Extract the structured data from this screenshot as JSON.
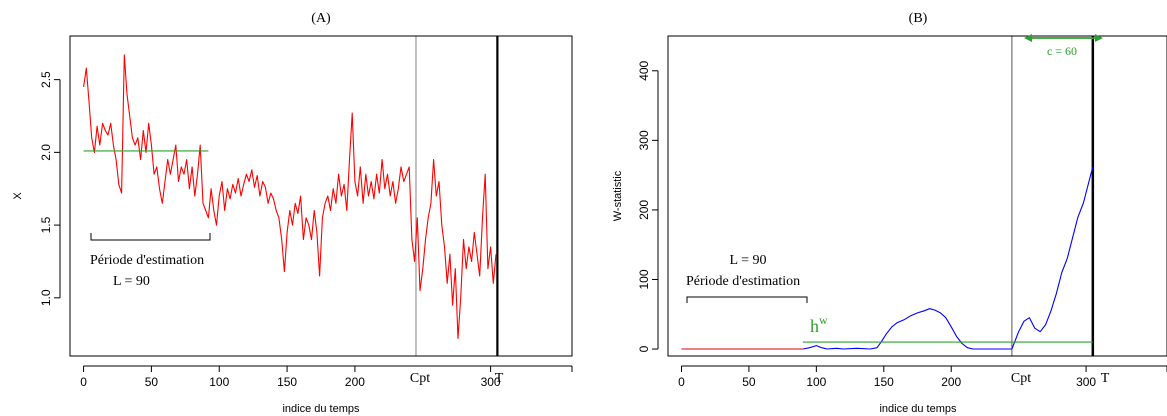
{
  "chart_data": [
    {
      "id": "A",
      "type": "line",
      "title": "(A)",
      "xlabel": "indice du temps",
      "ylabel": "X",
      "xlim": [
        -10,
        360
      ],
      "ylim": [
        0.6,
        2.8
      ],
      "xticks": [
        0,
        50,
        100,
        150,
        200,
        300
      ],
      "yticks": [
        1.0,
        1.5,
        2.0,
        2.5
      ],
      "ytick_labels": [
        "1.0",
        "1.5",
        "2.0",
        "2.5"
      ],
      "series": [
        {
          "color": "#ff0000",
          "points": [
            [
              0,
              2.45
            ],
            [
              2,
              2.58
            ],
            [
              4,
              2.35
            ],
            [
              6,
              2.1
            ],
            [
              8,
              2.0
            ],
            [
              10,
              2.18
            ],
            [
              12,
              2.05
            ],
            [
              14,
              2.2
            ],
            [
              16,
              2.15
            ],
            [
              18,
              2.12
            ],
            [
              20,
              2.2
            ],
            [
              22,
              2.05
            ],
            [
              24,
              1.95
            ],
            [
              26,
              1.78
            ],
            [
              28,
              1.72
            ],
            [
              30,
              2.67
            ],
            [
              32,
              2.4
            ],
            [
              34,
              2.25
            ],
            [
              36,
              2.1
            ],
            [
              38,
              2.05
            ],
            [
              40,
              2.1
            ],
            [
              42,
              1.95
            ],
            [
              44,
              2.15
            ],
            [
              46,
              2.0
            ],
            [
              48,
              2.2
            ],
            [
              50,
              2.05
            ],
            [
              52,
              1.85
            ],
            [
              54,
              1.9
            ],
            [
              56,
              1.75
            ],
            [
              58,
              1.65
            ],
            [
              60,
              1.8
            ],
            [
              62,
              1.95
            ],
            [
              64,
              1.85
            ],
            [
              66,
              1.95
            ],
            [
              68,
              2.05
            ],
            [
              70,
              1.8
            ],
            [
              72,
              1.9
            ],
            [
              74,
              1.85
            ],
            [
              76,
              1.95
            ],
            [
              78,
              1.75
            ],
            [
              80,
              1.9
            ],
            [
              82,
              1.7
            ],
            [
              84,
              1.85
            ],
            [
              86,
              2.05
            ],
            [
              88,
              1.65
            ],
            [
              90,
              1.6
            ],
            [
              92,
              1.55
            ],
            [
              94,
              1.75
            ],
            [
              96,
              1.6
            ],
            [
              98,
              1.5
            ],
            [
              100,
              1.7
            ],
            [
              102,
              1.8
            ],
            [
              104,
              1.6
            ],
            [
              106,
              1.75
            ],
            [
              108,
              1.68
            ],
            [
              110,
              1.78
            ],
            [
              112,
              1.72
            ],
            [
              114,
              1.82
            ],
            [
              116,
              1.7
            ],
            [
              118,
              1.78
            ],
            [
              120,
              1.85
            ],
            [
              122,
              1.8
            ],
            [
              124,
              1.88
            ],
            [
              126,
              1.76
            ],
            [
              128,
              1.84
            ],
            [
              130,
              1.7
            ],
            [
              132,
              1.8
            ],
            [
              134,
              1.76
            ],
            [
              136,
              1.65
            ],
            [
              138,
              1.72
            ],
            [
              140,
              1.68
            ],
            [
              142,
              1.6
            ],
            [
              144,
              1.55
            ],
            [
              146,
              1.4
            ],
            [
              148,
              1.18
            ],
            [
              150,
              1.45
            ],
            [
              152,
              1.6
            ],
            [
              154,
              1.5
            ],
            [
              156,
              1.65
            ],
            [
              158,
              1.58
            ],
            [
              160,
              1.7
            ],
            [
              162,
              1.4
            ],
            [
              164,
              1.55
            ],
            [
              166,
              1.5
            ],
            [
              168,
              1.4
            ],
            [
              170,
              1.6
            ],
            [
              172,
              1.45
            ],
            [
              174,
              1.15
            ],
            [
              176,
              1.55
            ],
            [
              178,
              1.65
            ],
            [
              180,
              1.7
            ],
            [
              182,
              1.6
            ],
            [
              184,
              1.75
            ],
            [
              186,
              1.65
            ],
            [
              188,
              1.85
            ],
            [
              190,
              1.7
            ],
            [
              192,
              1.78
            ],
            [
              194,
              1.6
            ],
            [
              196,
              1.95
            ],
            [
              198,
              2.27
            ],
            [
              200,
              1.8
            ],
            [
              202,
              1.7
            ],
            [
              204,
              1.9
            ],
            [
              206,
              1.65
            ],
            [
              208,
              1.85
            ],
            [
              210,
              1.7
            ],
            [
              212,
              1.8
            ],
            [
              214,
              1.68
            ],
            [
              216,
              1.85
            ],
            [
              218,
              1.72
            ],
            [
              220,
              1.95
            ],
            [
              222,
              1.75
            ],
            [
              224,
              1.85
            ],
            [
              226,
              1.7
            ],
            [
              228,
              1.8
            ],
            [
              230,
              1.65
            ],
            [
              232,
              1.75
            ],
            [
              234,
              1.9
            ],
            [
              236,
              1.8
            ],
            [
              238,
              1.85
            ],
            [
              240,
              1.9
            ],
            [
              242,
              1.4
            ],
            [
              244,
              1.25
            ],
            [
              246,
              1.55
            ],
            [
              248,
              1.05
            ],
            [
              250,
              1.2
            ],
            [
              252,
              1.4
            ],
            [
              254,
              1.55
            ],
            [
              256,
              1.65
            ],
            [
              258,
              1.95
            ],
            [
              260,
              1.7
            ],
            [
              262,
              1.8
            ],
            [
              264,
              1.5
            ],
            [
              266,
              1.35
            ],
            [
              268,
              1.1
            ],
            [
              270,
              1.3
            ],
            [
              272,
              0.95
            ],
            [
              274,
              1.2
            ],
            [
              276,
              0.72
            ],
            [
              278,
              1.0
            ],
            [
              280,
              1.4
            ],
            [
              282,
              1.2
            ],
            [
              284,
              1.35
            ],
            [
              286,
              1.25
            ],
            [
              288,
              1.45
            ],
            [
              290,
              1.3
            ],
            [
              292,
              1.15
            ],
            [
              294,
              1.55
            ],
            [
              296,
              1.85
            ],
            [
              298,
              1.2
            ],
            [
              300,
              1.35
            ],
            [
              302,
              1.1
            ],
            [
              304,
              1.3
            ]
          ]
        },
        {
          "color": "#2ca02c",
          "points": [
            [
              0,
              2.01
            ],
            [
              92,
              2.01
            ]
          ]
        }
      ],
      "vlines": [
        {
          "x": 245,
          "color": "#999999",
          "width": 1.2
        },
        {
          "x": 305,
          "color": "#000000",
          "width": 2.2
        }
      ],
      "x_marker_labels": [
        "Cpt",
        "T"
      ],
      "annotations": {
        "estimation_label": "Période d'estimation",
        "L_label": "L = 90"
      }
    },
    {
      "id": "B",
      "type": "line",
      "title": "(B)",
      "xlabel": "indice du temps",
      "ylabel": "W-statistic",
      "xlim": [
        -10,
        360
      ],
      "ylim": [
        -10,
        450
      ],
      "xticks": [
        0,
        50,
        100,
        150,
        200,
        300
      ],
      "yticks": [
        0,
        100,
        200,
        300,
        400
      ],
      "series": [
        {
          "color": "#e00000",
          "points": [
            [
              0,
              0
            ],
            [
              90,
              0
            ]
          ]
        },
        {
          "color": "#0000ff",
          "points": [
            [
              90,
              0
            ],
            [
              95,
              2
            ],
            [
              100,
              5
            ],
            [
              104,
              2
            ],
            [
              108,
              0
            ],
            [
              115,
              1
            ],
            [
              120,
              0
            ],
            [
              130,
              1
            ],
            [
              140,
              0
            ],
            [
              145,
              2
            ],
            [
              148,
              10
            ],
            [
              152,
              22
            ],
            [
              156,
              32
            ],
            [
              160,
              38
            ],
            [
              165,
              42
            ],
            [
              170,
              48
            ],
            [
              175,
              52
            ],
            [
              180,
              55
            ],
            [
              184,
              58
            ],
            [
              188,
              56
            ],
            [
              192,
              52
            ],
            [
              196,
              45
            ],
            [
              200,
              32
            ],
            [
              204,
              18
            ],
            [
              208,
              8
            ],
            [
              212,
              2
            ],
            [
              216,
              0
            ],
            [
              225,
              0
            ],
            [
              235,
              0
            ],
            [
              245,
              0
            ],
            [
              247,
              10
            ],
            [
              250,
              25
            ],
            [
              254,
              40
            ],
            [
              258,
              45
            ],
            [
              262,
              30
            ],
            [
              266,
              25
            ],
            [
              270,
              35
            ],
            [
              274,
              55
            ],
            [
              278,
              80
            ],
            [
              282,
              110
            ],
            [
              286,
              130
            ],
            [
              290,
              160
            ],
            [
              294,
              190
            ],
            [
              298,
              210
            ],
            [
              302,
              240
            ],
            [
              305,
              262
            ]
          ]
        },
        {
          "color": "#2ca02c",
          "points": [
            [
              90,
              10
            ],
            [
              305,
              10
            ]
          ]
        }
      ],
      "vlines": [
        {
          "x": 245,
          "color": "#555555",
          "width": 1.0
        },
        {
          "x": 305,
          "color": "#000000",
          "width": 2.5
        }
      ],
      "x_marker_labels": [
        "Cpt",
        "T"
      ],
      "annotations": {
        "L_label": "L = 90",
        "estimation_label": "Période d'estimation",
        "hw_label": "h",
        "hw_superscript": "w",
        "c_label": "c = 60"
      }
    }
  ]
}
